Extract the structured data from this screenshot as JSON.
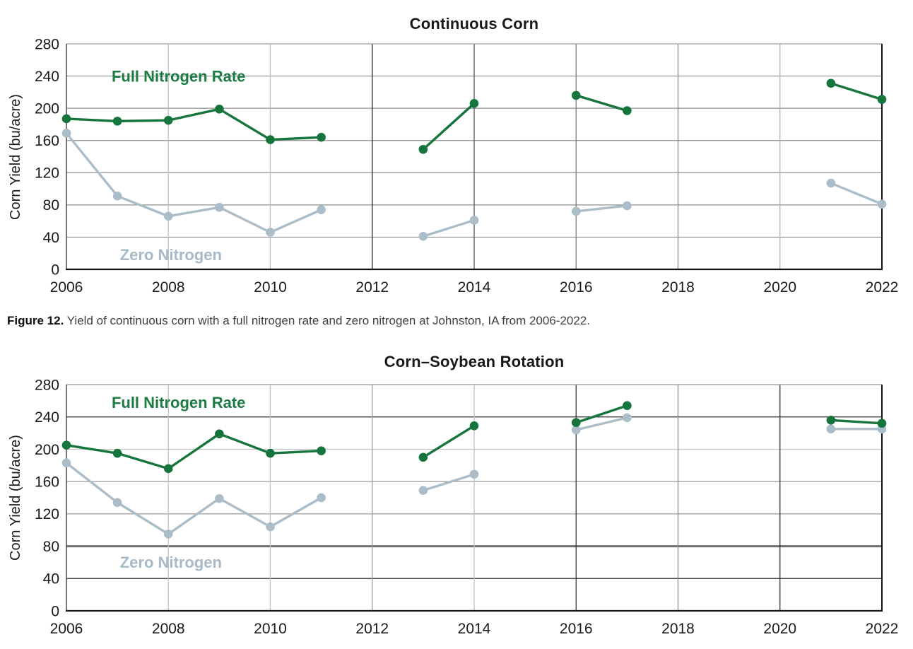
{
  "figure": {
    "caption_prefix": "Figure 12.",
    "caption_text": " Yield of continuous corn with a full nitrogen rate and zero nitrogen at Johnston, IA from 2006-2022."
  },
  "colors": {
    "full_nitrogen_green": "#16753c",
    "full_nitrogen_label_green": "#1d7c42",
    "zero_nitrogen_gray": "#abbdc8",
    "zero_nitrogen_label_gray": "#a6bac7",
    "tick_text": "#1a1a1a",
    "title_text": "#17191c"
  },
  "chart_data": [
    {
      "type": "line",
      "title": "Continuous Corn",
      "xlabel": "",
      "ylabel": "Corn Yield (bu/acre)",
      "ylim": [
        0,
        280
      ],
      "ytick_step": 40,
      "yticks": [
        0,
        40,
        80,
        120,
        160,
        200,
        240,
        280
      ],
      "xlim": [
        2006,
        2022
      ],
      "xticks": [
        2006,
        2008,
        2010,
        2012,
        2014,
        2016,
        2018,
        2020,
        2022
      ],
      "grid": "on",
      "legend_position": "inline-labels",
      "x": [
        2006,
        2007,
        2008,
        2009,
        2010,
        2011,
        2013,
        2014,
        2016,
        2017,
        2021,
        2022
      ],
      "series": [
        {
          "name": "Full Nitrogen Rate",
          "color": "#16753c",
          "label_color": "#1d7c42",
          "values": [
            187,
            184,
            185,
            199,
            161,
            164,
            149,
            206,
            216,
            197,
            231,
            211
          ],
          "label_at": {
            "x": 2008.2,
            "y": 240
          }
        },
        {
          "name": "Zero Nitrogen",
          "color": "#abbdc8",
          "label_color": "#a6bac7",
          "values": [
            169,
            91,
            66,
            77,
            46,
            74,
            41,
            61,
            72,
            79,
            107,
            81
          ],
          "label_at": {
            "x": 2008.05,
            "y": 18
          }
        }
      ]
    },
    {
      "type": "line",
      "title": "Corn–Soybean Rotation",
      "xlabel": "",
      "ylabel": "Corn Yield (bu/acre)",
      "ylim": [
        0,
        280
      ],
      "ytick_step": 40,
      "yticks": [
        0,
        40,
        80,
        120,
        160,
        200,
        240,
        280
      ],
      "xlim": [
        2006,
        2022
      ],
      "xticks": [
        2006,
        2008,
        2010,
        2012,
        2014,
        2016,
        2018,
        2020,
        2022
      ],
      "grid": "on",
      "legend_position": "inline-labels",
      "x": [
        2006,
        2007,
        2008,
        2009,
        2010,
        2011,
        2013,
        2014,
        2016,
        2017,
        2021,
        2022
      ],
      "series": [
        {
          "name": "Full Nitrogen Rate",
          "color": "#16753c",
          "label_color": "#1d7c42",
          "values": [
            205,
            195,
            176,
            219,
            195,
            198,
            190,
            229,
            233,
            254,
            236,
            232
          ],
          "label_at": {
            "x": 2008.2,
            "y": 258
          }
        },
        {
          "name": "Zero Nitrogen",
          "color": "#abbdc8",
          "label_color": "#a6bac7",
          "values": [
            183,
            134,
            95,
            139,
            104,
            140,
            149,
            169,
            224,
            239,
            225,
            225
          ],
          "label_at": {
            "x": 2008.05,
            "y": 60
          }
        }
      ]
    }
  ]
}
